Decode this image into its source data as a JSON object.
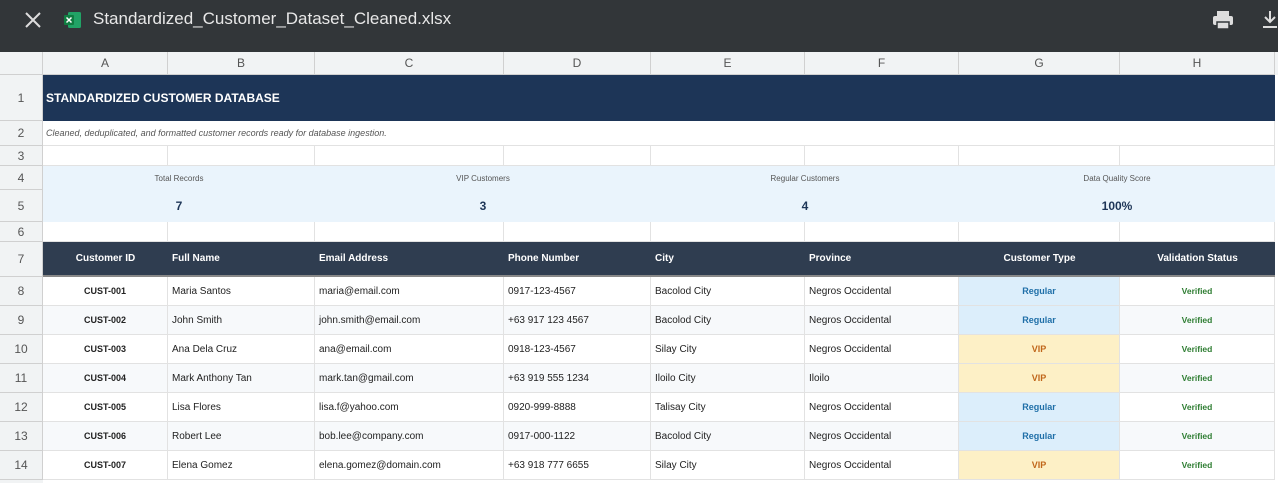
{
  "header": {
    "filename": "Standardized_Customer_Dataset_Cleaned.xlsx"
  },
  "sheet": {
    "columns": [
      "A",
      "B",
      "C",
      "D",
      "E",
      "F",
      "G",
      "H"
    ],
    "rows": [
      1,
      2,
      3,
      4,
      5,
      6,
      7,
      8,
      9,
      10,
      11,
      12,
      13,
      14
    ],
    "title": "STANDARDIZED CUSTOMER DATABASE",
    "subtitle": "Cleaned, deduplicated, and formatted customer records ready for database ingestion.",
    "summary": [
      {
        "label": "Total Records",
        "value": 7
      },
      {
        "label": "VIP Customers",
        "value": 3
      },
      {
        "label": "Regular Customers",
        "value": 4
      },
      {
        "label": "Data Quality Score",
        "value": "100%"
      }
    ],
    "table": {
      "headers": [
        "Customer ID",
        "Full Name",
        "Email Address",
        "Phone Number",
        "City",
        "Province",
        "Customer Type",
        "Validation Status"
      ],
      "rows": [
        [
          "CUST-001",
          "Maria Santos",
          "maria@email.com",
          "0917-123-4567",
          "Bacolod City",
          "Negros Occidental",
          "Regular",
          "Verified"
        ],
        [
          "CUST-002",
          "John Smith",
          "john.smith@email.com",
          "+63 917 123 4567",
          "Bacolod City",
          "Negros Occidental",
          "Regular",
          "Verified"
        ],
        [
          "CUST-003",
          "Ana Dela Cruz",
          "ana@email.com",
          "0918-123-4567",
          "Silay City",
          "Negros Occidental",
          "VIP",
          "Verified"
        ],
        [
          "CUST-004",
          "Mark Anthony Tan",
          "mark.tan@gmail.com",
          "+63 919 555 1234",
          "Iloilo City",
          "Iloilo",
          "VIP",
          "Verified"
        ],
        [
          "CUST-005",
          "Lisa Flores",
          "lisa.f@yahoo.com",
          "0920-999-8888",
          "Talisay City",
          "Negros Occidental",
          "Regular",
          "Verified"
        ],
        [
          "CUST-006",
          "Robert Lee",
          "bob.lee@company.com",
          "0917-000-1122",
          "Bacolod City",
          "Negros Occidental",
          "Regular",
          "Verified"
        ],
        [
          "CUST-007",
          "Elena Gomez",
          "elena.gomez@domain.com",
          "+63 918 777 6655",
          "Silay City",
          "Negros Occidental",
          "VIP",
          "Verified"
        ]
      ]
    }
  }
}
